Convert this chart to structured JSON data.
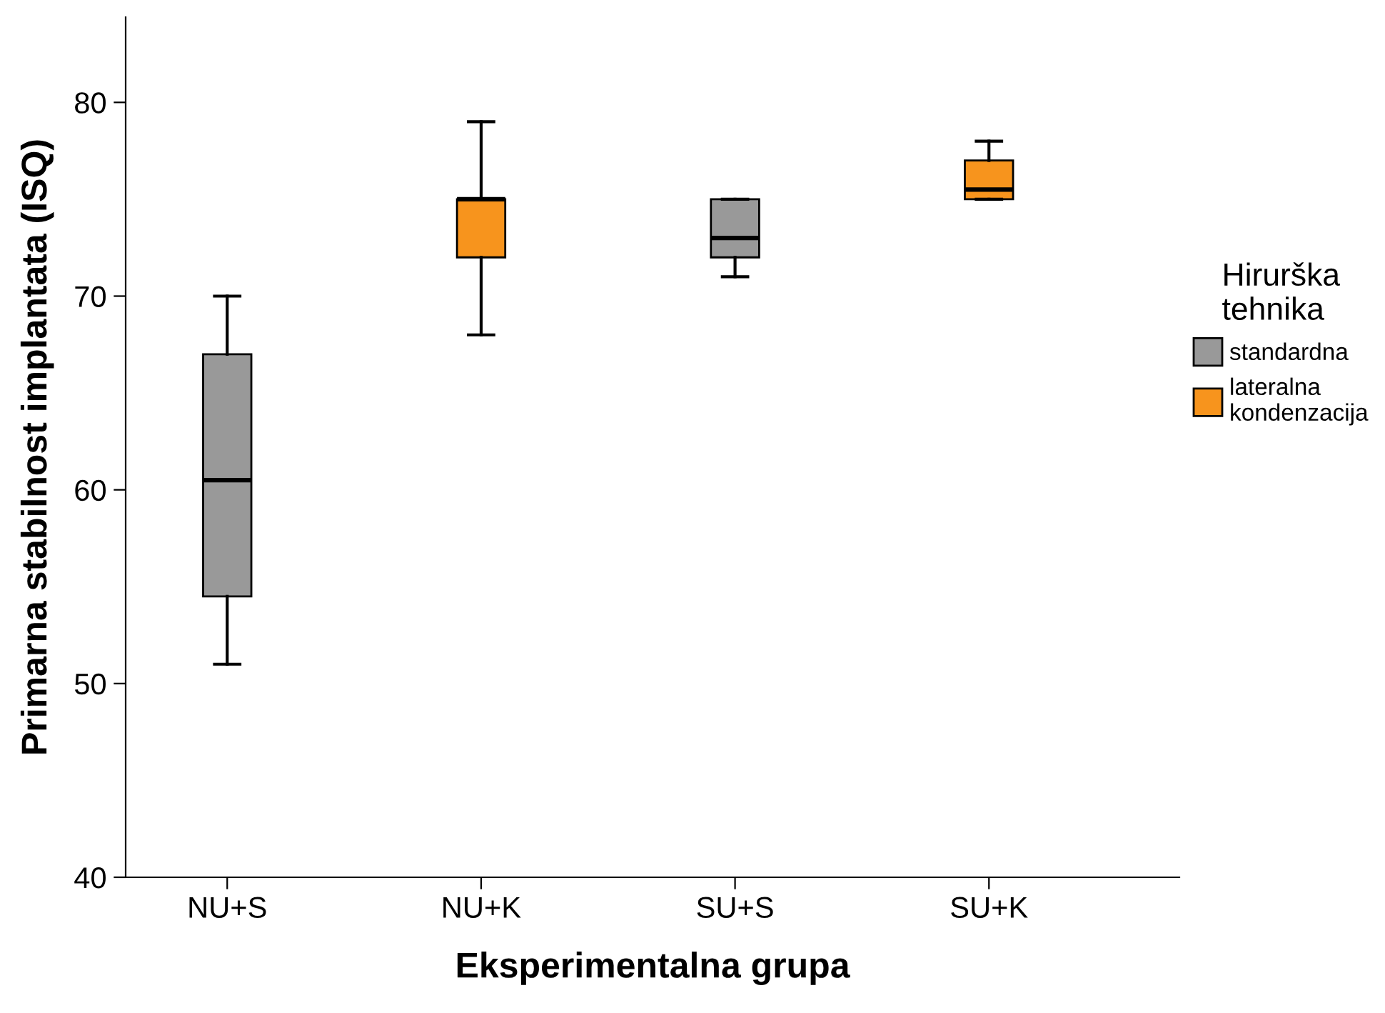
{
  "chart_data": {
    "type": "box",
    "xlabel": "Eksperimentalna grupa",
    "ylabel": "Primarna stabilnost implantata (ISQ)",
    "legend_title": "Hirurška\ntehnika",
    "categories": [
      "NU+S",
      "NU+K",
      "SU+S",
      "SU+K"
    ],
    "series": [
      {
        "name": "standardna",
        "color": "#999999",
        "boxes": [
          {
            "low": 51,
            "q1": 54.5,
            "median": 60.5,
            "q3": 67,
            "high": 70
          },
          null,
          {
            "low": 71,
            "q1": 72,
            "median": 73,
            "q3": 75,
            "high": 75
          },
          null
        ]
      },
      {
        "name": "lateralna\nkondenzacija",
        "color": "#f7941d",
        "boxes": [
          null,
          {
            "low": 68,
            "q1": 72,
            "median": 75,
            "q3": 75,
            "high": 79
          },
          null,
          {
            "low": 75,
            "q1": 75,
            "median": 75.5,
            "q3": 77,
            "high": 78
          }
        ]
      }
    ],
    "ylim": [
      40,
      84.4
    ],
    "yticks": [
      40,
      50,
      60,
      70,
      80
    ],
    "grid": false,
    "legend": "right"
  }
}
